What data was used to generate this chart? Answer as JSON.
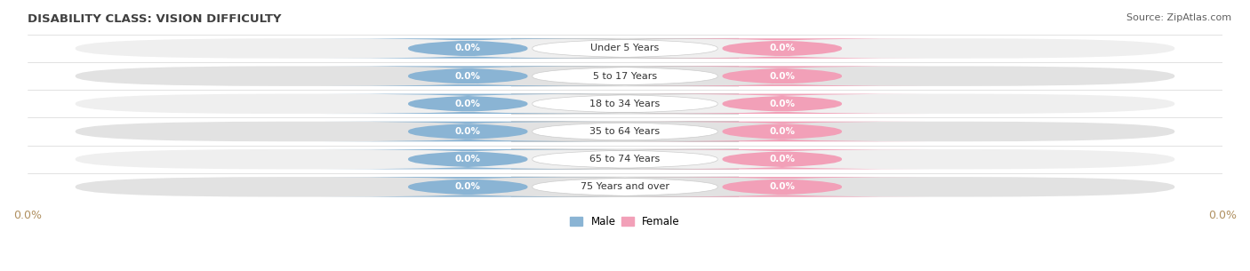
{
  "title": "DISABILITY CLASS: VISION DIFFICULTY",
  "source_text": "Source: ZipAtlas.com",
  "categories": [
    "Under 5 Years",
    "5 to 17 Years",
    "18 to 34 Years",
    "35 to 64 Years",
    "65 to 74 Years",
    "75 Years and over"
  ],
  "male_values": [
    0.0,
    0.0,
    0.0,
    0.0,
    0.0,
    0.0
  ],
  "female_values": [
    0.0,
    0.0,
    0.0,
    0.0,
    0.0,
    0.0
  ],
  "male_color": "#8ab4d4",
  "female_color": "#f2a0b8",
  "row_bg_light": "#efefef",
  "row_bg_dark": "#e2e2e2",
  "title_color": "#404040",
  "source_color": "#606060",
  "axis_tick_color": "#b09060",
  "legend_male": "Male",
  "legend_female": "Female",
  "fig_width": 14.06,
  "fig_height": 3.05,
  "xlim": [
    -1.0,
    1.0
  ]
}
